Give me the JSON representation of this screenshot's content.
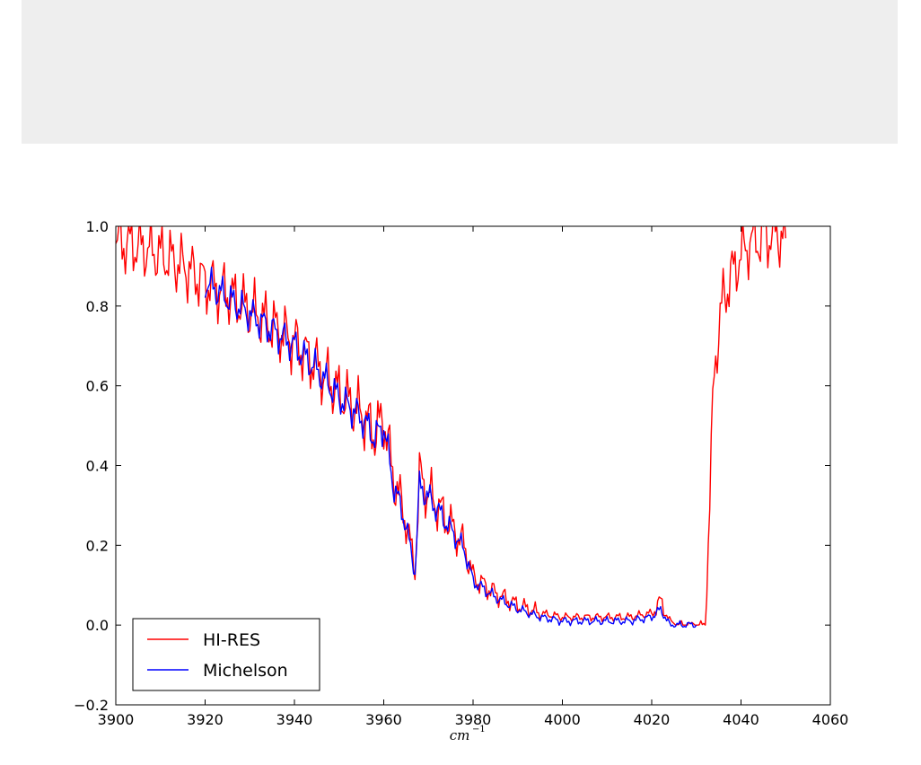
{
  "colors": {
    "hires": "#ff0000",
    "michelson": "#0000ff",
    "banner": "#eeeeee"
  },
  "chart_data": {
    "type": "line",
    "title": "",
    "xlabel": {
      "base": "cm",
      "exponent": "−1"
    },
    "ylabel": "",
    "xlim": [
      3900,
      4060
    ],
    "ylim": [
      -0.2,
      1.0
    ],
    "xticks": [
      3900,
      3920,
      3940,
      3960,
      3980,
      4000,
      4020,
      4040,
      4060
    ],
    "yticks": [
      -0.2,
      0.0,
      0.2,
      0.4,
      0.6,
      0.8,
      1.0
    ],
    "xtick_labels": [
      "3900",
      "3920",
      "3940",
      "3960",
      "3980",
      "4000",
      "4020",
      "4040",
      "4060"
    ],
    "ytick_labels": [
      "−0.2",
      "0.0",
      "0.2",
      "0.4",
      "0.6",
      "0.8",
      "1.0"
    ],
    "grid": false,
    "legend_position": "lower-left",
    "series": [
      {
        "name": "HI-RES",
        "color": "#ff0000",
        "x": [
          3900,
          3905,
          3910,
          3915,
          3920,
          3925,
          3930,
          3935,
          3940,
          3945,
          3950,
          3955,
          3958,
          3960,
          3962,
          3965,
          3967,
          3968,
          3970,
          3972,
          3975,
          3978,
          3980,
          3985,
          3990,
          3995,
          4000,
          4005,
          4010,
          4015,
          4020,
          4022,
          4024,
          4026,
          4028,
          4030,
          4032,
          4033,
          4034,
          4036,
          4038,
          4040,
          4042,
          4045,
          4048,
          4050
        ],
        "y": [
          0.96,
          0.95,
          0.93,
          0.9,
          0.86,
          0.83,
          0.79,
          0.75,
          0.71,
          0.65,
          0.58,
          0.53,
          0.48,
          0.52,
          0.38,
          0.26,
          0.14,
          0.37,
          0.33,
          0.3,
          0.25,
          0.2,
          0.12,
          0.08,
          0.05,
          0.03,
          0.02,
          0.02,
          0.02,
          0.02,
          0.03,
          0.06,
          0.01,
          0.0,
          0.0,
          0.0,
          0.0,
          0.3,
          0.65,
          0.82,
          0.88,
          0.93,
          0.96,
          0.97,
          0.98,
          0.97
        ]
      },
      {
        "name": "Michelson",
        "color": "#0000ff",
        "x": [
          3920,
          3925,
          3930,
          3935,
          3940,
          3945,
          3950,
          3955,
          3958,
          3960,
          3962,
          3965,
          3967,
          3968,
          3970,
          3972,
          3975,
          3978,
          3980,
          3985,
          3990,
          3995,
          4000,
          4005,
          4010,
          4015,
          4020,
          4022,
          4024,
          4026,
          4028,
          4030
        ],
        "y": [
          0.86,
          0.82,
          0.78,
          0.74,
          0.7,
          0.64,
          0.57,
          0.52,
          0.47,
          0.5,
          0.36,
          0.25,
          0.13,
          0.35,
          0.32,
          0.29,
          0.24,
          0.19,
          0.11,
          0.07,
          0.04,
          0.02,
          0.01,
          0.01,
          0.01,
          0.01,
          0.02,
          0.04,
          0.0,
          0.0,
          0.0,
          0.0
        ]
      }
    ]
  }
}
